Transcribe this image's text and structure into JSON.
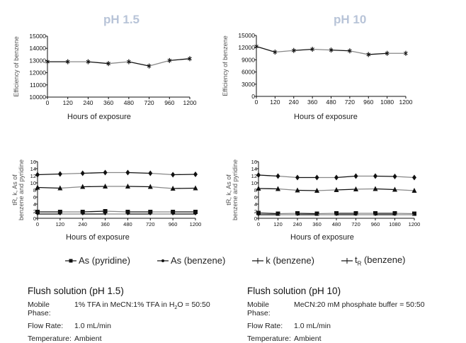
{
  "headers": {
    "left": "pH 1.5",
    "right": "pH 10"
  },
  "chart_data": [
    {
      "id": "eff_ph15",
      "type": "line",
      "title": "pH 1.5",
      "xlabel": "Hours of exposure",
      "ylabel": "Efficiency of benzene",
      "categories": [
        "0",
        "120",
        "240",
        "360",
        "480",
        "720",
        "960",
        "1200"
      ],
      "ylim": [
        10000,
        15000
      ],
      "yticks": [
        10000,
        11000,
        12000,
        13000,
        14000,
        15000
      ],
      "series": [
        {
          "name": "Efficiency of benzene",
          "marker": "star",
          "values": [
            12900,
            12900,
            12900,
            12750,
            12900,
            12550,
            13000,
            13150
          ]
        }
      ]
    },
    {
      "id": "eff_ph10",
      "type": "line",
      "title": "pH 10",
      "xlabel": "Hours of exposure",
      "ylabel": "Efficiency of benzene",
      "categories": [
        "0",
        "120",
        "240",
        "360",
        "480",
        "720",
        "960",
        "1080",
        "1200"
      ],
      "ylim": [
        0,
        15000
      ],
      "yticks": [
        0,
        3000,
        6000,
        9000,
        12000,
        15000
      ],
      "series": [
        {
          "name": "Efficiency of benzene",
          "marker": "star",
          "values": [
            12300,
            10900,
            11300,
            11600,
            11400,
            11200,
            10300,
            10600,
            10600
          ]
        }
      ]
    },
    {
      "id": "params_ph15",
      "type": "line",
      "xlabel": "Hours of exposure",
      "ylabel": [
        "tR, k, As of",
        "benzene and pyridine"
      ],
      "categories": [
        "0",
        "120",
        "240",
        "360",
        "480",
        "720",
        "960",
        "1200"
      ],
      "ylim": [
        0,
        16
      ],
      "yticks": [
        0,
        2,
        4,
        6,
        8,
        10,
        12,
        14,
        16
      ],
      "series": [
        {
          "name": "As (pyridine)",
          "marker": "square",
          "values": [
            1.8,
            1.8,
            1.8,
            2.0,
            1.8,
            1.8,
            1.8,
            1.8
          ]
        },
        {
          "name": "As (benzene)",
          "marker": "dot",
          "values": [
            1.2,
            1.2,
            1.2,
            1.2,
            1.2,
            1.2,
            1.2,
            1.2
          ]
        },
        {
          "name": "k (benzene)",
          "marker": "triangle",
          "values": [
            8.7,
            8.5,
            8.9,
            9.0,
            9.0,
            8.9,
            8.4,
            8.5
          ]
        },
        {
          "name": "tR (benzene)",
          "marker": "diamond",
          "values": [
            12.3,
            12.5,
            12.7,
            12.9,
            12.9,
            12.7,
            12.3,
            12.4
          ]
        }
      ]
    },
    {
      "id": "params_ph10",
      "type": "line",
      "xlabel": "Hours of exposure",
      "ylabel": [
        "tR, k, As of",
        "benzene and pyridine"
      ],
      "categories": [
        "0",
        "120",
        "240",
        "360",
        "480",
        "720",
        "960",
        "1080",
        "1200"
      ],
      "ylim": [
        0,
        16
      ],
      "yticks": [
        0,
        2,
        4,
        6,
        8,
        10,
        12,
        14,
        16
      ],
      "series": [
        {
          "name": "As (pyridine)",
          "marker": "square",
          "values": [
            1.5,
            1.3,
            1.4,
            1.3,
            1.4,
            1.4,
            1.4,
            1.4,
            1.3
          ]
        },
        {
          "name": "As (benzene)",
          "marker": "dot",
          "values": [
            1.0,
            1.0,
            1.0,
            1.0,
            1.0,
            1.0,
            1.0,
            1.0,
            1.0
          ]
        },
        {
          "name": "k (benzene)",
          "marker": "triangle",
          "values": [
            8.4,
            8.3,
            7.9,
            7.8,
            8.0,
            8.2,
            8.3,
            8.1,
            7.8
          ]
        },
        {
          "name": "tR (benzene)",
          "marker": "diamond",
          "values": [
            12.2,
            11.9,
            11.5,
            11.5,
            11.5,
            11.9,
            11.9,
            11.8,
            11.5
          ]
        }
      ]
    }
  ],
  "legend": [
    {
      "label": "As (pyridine)",
      "marker": "square"
    },
    {
      "label": "As (benzene)",
      "marker": "dot"
    },
    {
      "label": "k (benzene)",
      "marker": "triangle"
    },
    {
      "label_main": "t",
      "label_sub": "R",
      "label_rest": " (benzene)",
      "marker": "diamond"
    }
  ],
  "flush": [
    {
      "title": "Flush solution (pH 1.5)",
      "rows": [
        {
          "label": "Mobile Phase:",
          "value_pre": "1% TFA in MeCN:1% TFA in H",
          "value_sub": "2",
          "value_post": "O = 50:50"
        },
        {
          "label": "Flow Rate:",
          "value_pre": "1.0 mL/min",
          "value_sub": "",
          "value_post": ""
        },
        {
          "label": "Temperature:",
          "value_pre": "Ambient",
          "value_sub": "",
          "value_post": ""
        }
      ]
    },
    {
      "title": "Flush solution (pH 10)",
      "rows": [
        {
          "label": "Mobile Phase:",
          "value_pre": "MeCN:20 mM phosphate buffer = 50:50",
          "value_sub": "",
          "value_post": ""
        },
        {
          "label": "Flow Rate:",
          "value_pre": "1.0 mL/min",
          "value_sub": "",
          "value_post": ""
        },
        {
          "label": "Temperature:",
          "value_pre": "Ambient",
          "value_sub": "",
          "value_post": ""
        }
      ]
    }
  ]
}
